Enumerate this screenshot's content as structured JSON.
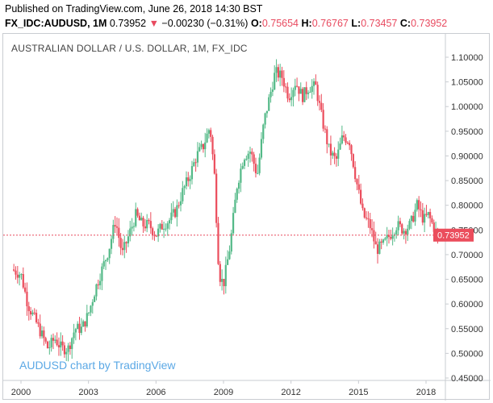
{
  "header": {
    "published": "Published on TradingView.com, June 26, 2018 14:30 BST",
    "symbol": "FX_IDC:AUDUSD, 1M",
    "last": "0.73952",
    "change_arrow": "▼",
    "change": "−0.00230 (−0.31%)",
    "open_label": "O:",
    "open": "0.75654",
    "high_label": "H:",
    "high": "0.76767",
    "low_label": "L:",
    "low": "0.73457",
    "close_label": "C:",
    "close": "0.73952"
  },
  "colors": {
    "up": "#53b987",
    "down": "#eb4d5c",
    "price_line": "#e84a5f",
    "watermark": "#5ba8e5"
  },
  "chart_data": {
    "type": "candlestick",
    "title": "AUSTRALIAN DOLLAR / U.S. DOLLAR, 1M, FX_IDC",
    "watermark": "AUDUSD chart by TradingView",
    "y_ticks": [
      "1.10000",
      "1.05000",
      "1.00000",
      "0.95000",
      "0.90000",
      "0.85000",
      "0.80000",
      "0.75000",
      "0.70000",
      "0.65000",
      "0.60000",
      "0.55000",
      "0.50000",
      "0.45000"
    ],
    "x_ticks": [
      "2000",
      "2003",
      "2006",
      "2009",
      "2012",
      "2015",
      "2018"
    ],
    "ylim": [
      0.45,
      1.11
    ],
    "last_price_label": "0.73952",
    "last_price": 0.73952,
    "series": [
      {
        "x": 1999.6,
        "close": 0.67
      },
      {
        "x": 2000.0,
        "close": 0.66
      },
      {
        "x": 2000.3,
        "close": 0.6
      },
      {
        "x": 2000.6,
        "close": 0.57
      },
      {
        "x": 2000.9,
        "close": 0.54
      },
      {
        "x": 2001.2,
        "close": 0.51
      },
      {
        "x": 2001.5,
        "close": 0.53
      },
      {
        "x": 2001.8,
        "close": 0.51
      },
      {
        "x": 2002.1,
        "close": 0.51
      },
      {
        "x": 2002.4,
        "close": 0.55
      },
      {
        "x": 2002.7,
        "close": 0.55
      },
      {
        "x": 2003.0,
        "close": 0.58
      },
      {
        "x": 2003.3,
        "close": 0.63
      },
      {
        "x": 2003.6,
        "close": 0.67
      },
      {
        "x": 2003.9,
        "close": 0.71
      },
      {
        "x": 2004.2,
        "close": 0.77
      },
      {
        "x": 2004.5,
        "close": 0.7
      },
      {
        "x": 2004.8,
        "close": 0.74
      },
      {
        "x": 2005.1,
        "close": 0.78
      },
      {
        "x": 2005.4,
        "close": 0.76
      },
      {
        "x": 2005.7,
        "close": 0.76
      },
      {
        "x": 2006.0,
        "close": 0.74
      },
      {
        "x": 2006.3,
        "close": 0.76
      },
      {
        "x": 2006.6,
        "close": 0.77
      },
      {
        "x": 2006.9,
        "close": 0.79
      },
      {
        "x": 2007.2,
        "close": 0.83
      },
      {
        "x": 2007.5,
        "close": 0.86
      },
      {
        "x": 2007.8,
        "close": 0.9
      },
      {
        "x": 2008.1,
        "close": 0.92
      },
      {
        "x": 2008.4,
        "close": 0.96
      },
      {
        "x": 2008.6,
        "close": 0.86
      },
      {
        "x": 2008.8,
        "close": 0.66
      },
      {
        "x": 2009.0,
        "close": 0.64
      },
      {
        "x": 2009.3,
        "close": 0.72
      },
      {
        "x": 2009.6,
        "close": 0.84
      },
      {
        "x": 2009.9,
        "close": 0.9
      },
      {
        "x": 2010.2,
        "close": 0.91
      },
      {
        "x": 2010.5,
        "close": 0.86
      },
      {
        "x": 2010.8,
        "close": 0.97
      },
      {
        "x": 2011.0,
        "close": 1.01
      },
      {
        "x": 2011.3,
        "close": 1.07
      },
      {
        "x": 2011.6,
        "close": 1.06
      },
      {
        "x": 2011.9,
        "close": 1.02
      },
      {
        "x": 2012.2,
        "close": 1.05
      },
      {
        "x": 2012.5,
        "close": 1.02
      },
      {
        "x": 2012.8,
        "close": 1.04
      },
      {
        "x": 2013.1,
        "close": 1.04
      },
      {
        "x": 2013.4,
        "close": 0.97
      },
      {
        "x": 2013.7,
        "close": 0.91
      },
      {
        "x": 2014.0,
        "close": 0.89
      },
      {
        "x": 2014.3,
        "close": 0.94
      },
      {
        "x": 2014.6,
        "close": 0.93
      },
      {
        "x": 2014.9,
        "close": 0.85
      },
      {
        "x": 2015.2,
        "close": 0.78
      },
      {
        "x": 2015.5,
        "close": 0.76
      },
      {
        "x": 2015.8,
        "close": 0.71
      },
      {
        "x": 2016.1,
        "close": 0.72
      },
      {
        "x": 2016.4,
        "close": 0.74
      },
      {
        "x": 2016.7,
        "close": 0.76
      },
      {
        "x": 2017.0,
        "close": 0.75
      },
      {
        "x": 2017.3,
        "close": 0.76
      },
      {
        "x": 2017.6,
        "close": 0.8
      },
      {
        "x": 2017.9,
        "close": 0.77
      },
      {
        "x": 2018.1,
        "close": 0.78
      },
      {
        "x": 2018.3,
        "close": 0.76
      },
      {
        "x": 2018.5,
        "close": 0.73952
      }
    ]
  }
}
